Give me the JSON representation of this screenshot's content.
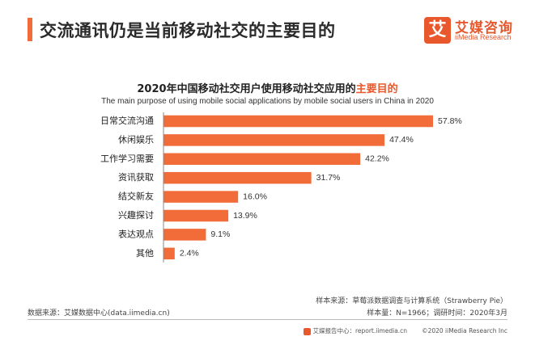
{
  "header": {
    "title": "交流通讯仍是当前移动社交的主要目的",
    "logo_cn": "艾媒咨询",
    "logo_en": "iiMedia Research",
    "logo_mark": "艾"
  },
  "colors": {
    "accent": "#f26c3a",
    "bar": "#f26c3a",
    "brand": "#e8582c"
  },
  "chart_data": {
    "type": "bar",
    "orientation": "horizontal",
    "title_main": "2020年中国移动社交用户使用移动社交应用的",
    "title_highlight": "主要目的",
    "subtitle": "The main purpose of using mobile social applications by mobile social users in China in 2020",
    "categories": [
      "日常交流沟通",
      "休闲娱乐",
      "工作学习需要",
      "资讯获取",
      "结交新友",
      "兴趣探讨",
      "表达观点",
      "其他"
    ],
    "values": [
      57.8,
      47.4,
      42.2,
      31.7,
      16.0,
      13.9,
      9.1,
      2.4
    ],
    "value_labels": [
      "57.8%",
      "47.4%",
      "42.2%",
      "31.7%",
      "16.0%",
      "13.9%",
      "9.1%",
      "2.4%"
    ],
    "unit": "%"
  },
  "footer": {
    "data_source": "数据来源：艾媒数据中心(data.iimedia.cn)",
    "sample_source": "样本来源：草莓派数据调查与计算系统（Strawberry Pie）",
    "sample_info": "样本量：N=1966；调研时间：2020年3月",
    "report_center": "艾媒报告中心：report.iimedia.cn",
    "copyright": "©2020  iiMedia Research Inc"
  }
}
